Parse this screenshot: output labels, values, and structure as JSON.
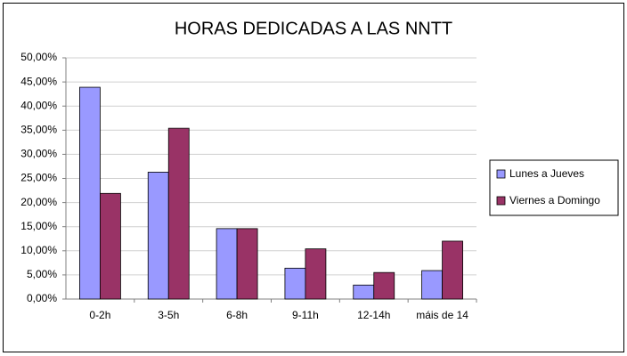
{
  "chart_data": {
    "type": "bar",
    "title": "HORAS DEDICADAS A LAS NNTT",
    "categories": [
      "0-2h",
      "3-5h",
      "6-8h",
      "9-11h",
      "12-14h",
      "máis de 14"
    ],
    "series": [
      {
        "name": "Lunes a Jueves",
        "color": "#9999ff",
        "values": [
          43.9,
          26.3,
          14.6,
          6.4,
          2.9,
          5.9
        ]
      },
      {
        "name": "Viernes a Domingo",
        "color": "#993366",
        "values": [
          21.9,
          35.4,
          14.6,
          10.4,
          5.5,
          12.0
        ]
      }
    ],
    "ylim": [
      0,
      50
    ],
    "yticks": [
      {
        "value": 0,
        "label": "0,00%"
      },
      {
        "value": 5,
        "label": "5,00%"
      },
      {
        "value": 10,
        "label": "10,00%"
      },
      {
        "value": 15,
        "label": "15,00%"
      },
      {
        "value": 20,
        "label": "20,00%"
      },
      {
        "value": 25,
        "label": "25,00%"
      },
      {
        "value": 30,
        "label": "30,00%"
      },
      {
        "value": 35,
        "label": "35,00%"
      },
      {
        "value": 40,
        "label": "40,00%"
      },
      {
        "value": 45,
        "label": "45,00%"
      },
      {
        "value": 50,
        "label": "50,00%"
      }
    ],
    "grid": true,
    "legend": "right"
  }
}
